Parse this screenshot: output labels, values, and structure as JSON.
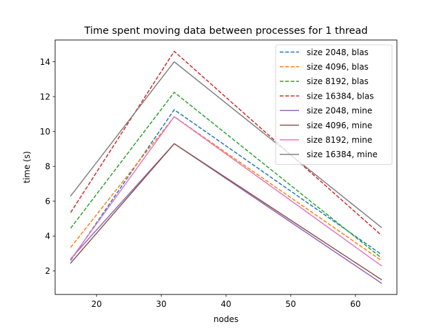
{
  "chart_data": {
    "type": "line",
    "title": "Time spent moving data between processes for 1 thread",
    "xlabel": "nodes",
    "ylabel": "time (s)",
    "x": [
      16,
      32,
      64
    ],
    "xlim": [
      13.6,
      66.4
    ],
    "ylim": [
      0.65,
      15.25
    ],
    "xticks": [
      20,
      30,
      40,
      50,
      60
    ],
    "yticks": [
      2,
      4,
      6,
      8,
      10,
      12,
      14
    ],
    "grid": false,
    "legend_position": "top-right",
    "series": [
      {
        "name": "size 2048, blas",
        "values": [
          2.6,
          11.25,
          2.95
        ],
        "color": "#1f77b4",
        "dashed": true
      },
      {
        "name": "size 4096, blas",
        "values": [
          3.35,
          10.85,
          2.6
        ],
        "color": "#ff7f0e",
        "dashed": true
      },
      {
        "name": "size 8192, blas",
        "values": [
          4.45,
          12.25,
          2.75
        ],
        "color": "#2ca02c",
        "dashed": true
      },
      {
        "name": "size 16384, blas",
        "values": [
          5.35,
          14.6,
          4.05
        ],
        "color": "#d62728",
        "dashed": true
      },
      {
        "name": "size 2048, mine",
        "values": [
          2.7,
          9.3,
          1.3
        ],
        "color": "#9467bd",
        "dashed": false
      },
      {
        "name": "size 4096, mine",
        "values": [
          2.45,
          9.3,
          1.5
        ],
        "color": "#8c564b",
        "dashed": false
      },
      {
        "name": "size 8192, mine",
        "values": [
          2.65,
          10.85,
          2.3
        ],
        "color": "#e377c2",
        "dashed": false
      },
      {
        "name": "size 16384, mine",
        "values": [
          6.3,
          14.0,
          4.5
        ],
        "color": "#7f7f7f",
        "dashed": false
      }
    ]
  }
}
